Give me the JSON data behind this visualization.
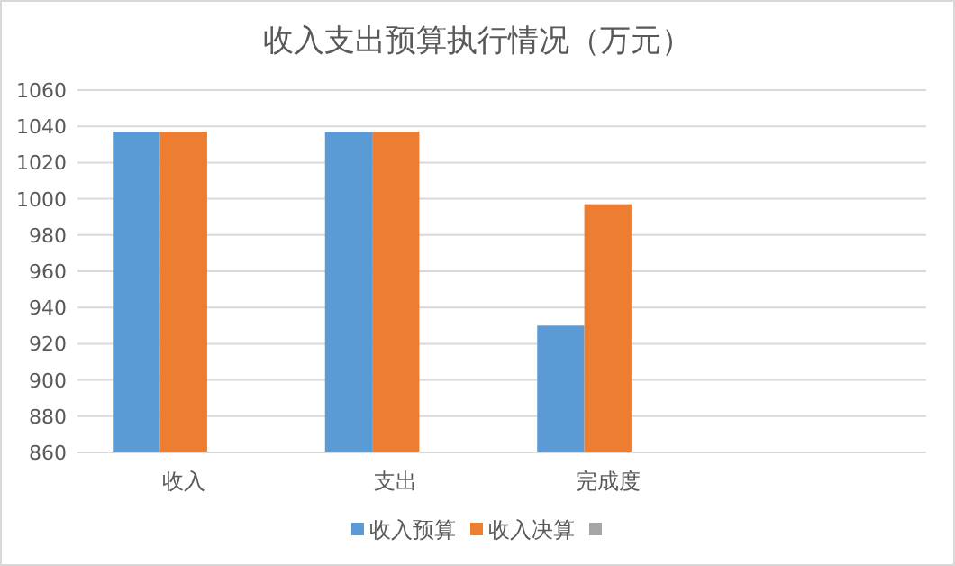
{
  "chart_data": {
    "type": "bar",
    "title": "收入支出预算执行情况（万元）",
    "categories": [
      "收入",
      "支出",
      "完成度",
      null
    ],
    "series": [
      {
        "name": "收入预算",
        "color": "#5b9bd5",
        "values": [
          1037,
          1037,
          930,
          null
        ]
      },
      {
        "name": "收入决算",
        "color": "#ed7d31",
        "values": [
          1037,
          1037,
          997,
          null
        ]
      },
      {
        "color": "#a5a5a5",
        "values": [
          null,
          null,
          null,
          null
        ]
      }
    ],
    "ylim": [
      860,
      1060
    ],
    "yticks": [
      860,
      880,
      900,
      920,
      940,
      960,
      980,
      1000,
      1020,
      1040,
      1060
    ],
    "grid": "y",
    "legend": "bottom"
  }
}
